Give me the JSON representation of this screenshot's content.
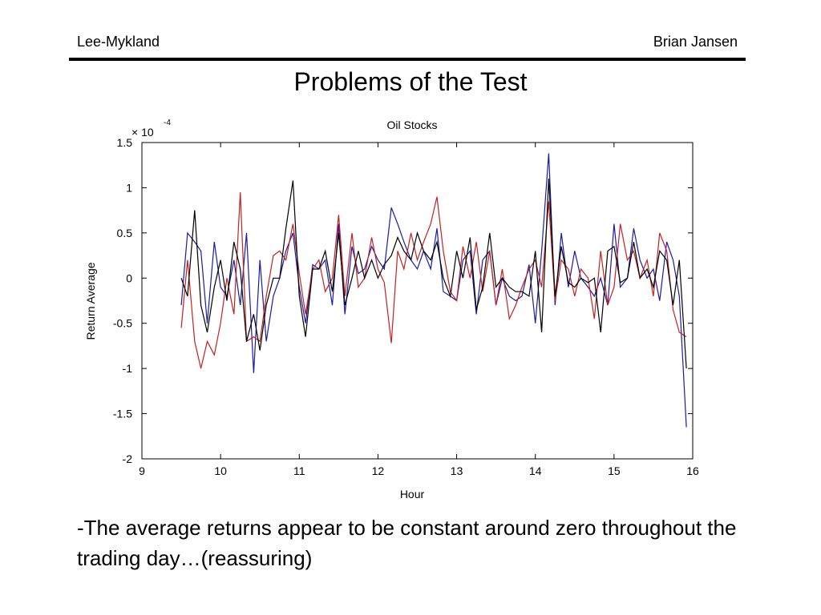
{
  "header": {
    "left": "Lee-Mykland",
    "right": "Brian Jansen"
  },
  "slide_title": "Problems of the Test",
  "bullet_text": "-The average returns appear to be constant around zero throughout the trading day…(reassuring)",
  "chart_data": {
    "type": "line",
    "title": "Oil Stocks",
    "xlabel": "Hour",
    "ylabel": "Return Average",
    "exponent_label": "× 10",
    "exponent_power": "-4",
    "xlim": [
      9,
      16
    ],
    "ylim": [
      -2,
      1.5
    ],
    "xticks": [
      9,
      10,
      11,
      12,
      13,
      14,
      15,
      16
    ],
    "yticks": [
      -2,
      -1.5,
      -1,
      -0.5,
      0,
      0.5,
      1,
      1.5
    ],
    "grid": false,
    "colors": {
      "blue": "#1a1aa8",
      "red": "#c42020",
      "black": "#000000"
    },
    "series": [
      {
        "color": "blue",
        "x": [
          9.5,
          9.58,
          9.67,
          9.75,
          9.83,
          9.92,
          10.0,
          10.08,
          10.17,
          10.25,
          10.33,
          10.42,
          10.5,
          10.58,
          10.67,
          10.75,
          10.83,
          10.92,
          11.0,
          11.08,
          11.17,
          11.25,
          11.33,
          11.42,
          11.5,
          11.58,
          11.67,
          11.75,
          11.83,
          11.92,
          12.0,
          12.08,
          12.17,
          12.25,
          12.33,
          12.42,
          12.5,
          12.58,
          12.67,
          12.75,
          12.83,
          12.92,
          13.0,
          13.08,
          13.17,
          13.25,
          13.33,
          13.42,
          13.5,
          13.58,
          13.67,
          13.75,
          13.83,
          13.92,
          14.0,
          14.08,
          14.17,
          14.25,
          14.33,
          14.42,
          14.5,
          14.58,
          14.67,
          14.75,
          14.83,
          14.92,
          15.0,
          15.08,
          15.17,
          15.25,
          15.33,
          15.42,
          15.5,
          15.58,
          15.67,
          15.75,
          15.83,
          15.92
        ],
        "y": [
          -0.3,
          0.5,
          0.4,
          0.3,
          -0.5,
          0.4,
          -0.1,
          -0.2,
          0.2,
          -0.3,
          0.5,
          -1.05,
          0.2,
          -0.7,
          -0.2,
          0.0,
          0.3,
          0.5,
          -0.1,
          -0.5,
          0.15,
          0.1,
          0.2,
          -0.3,
          0.6,
          -0.4,
          0.35,
          0.05,
          0.1,
          0.35,
          0.2,
          0.1,
          0.78,
          0.6,
          0.4,
          0.2,
          0.1,
          0.3,
          0.1,
          0.55,
          -0.15,
          -0.2,
          -0.25,
          0.2,
          0.3,
          -0.4,
          0.2,
          0.3,
          -0.3,
          0.0,
          -0.2,
          -0.25,
          -0.2,
          0.15,
          -0.5,
          0.3,
          1.38,
          -0.3,
          0.5,
          -0.1,
          0.3,
          0.0,
          -0.1,
          -0.2,
          0.0,
          -0.3,
          0.6,
          -0.1,
          0.0,
          0.55,
          0.2,
          0.0,
          0.1,
          -0.25,
          0.4,
          0.2,
          -0.2,
          -1.65
        ]
      },
      {
        "color": "red",
        "x": [
          9.5,
          9.58,
          9.67,
          9.75,
          9.83,
          9.92,
          10.0,
          10.08,
          10.17,
          10.25,
          10.33,
          10.42,
          10.5,
          10.58,
          10.67,
          10.75,
          10.83,
          10.92,
          11.0,
          11.08,
          11.17,
          11.25,
          11.33,
          11.42,
          11.5,
          11.58,
          11.67,
          11.75,
          11.83,
          11.92,
          12.0,
          12.08,
          12.17,
          12.25,
          12.33,
          12.42,
          12.5,
          12.58,
          12.67,
          12.75,
          12.83,
          12.92,
          13.0,
          13.08,
          13.17,
          13.25,
          13.33,
          13.42,
          13.5,
          13.58,
          13.67,
          13.75,
          13.83,
          13.92,
          14.0,
          14.08,
          14.17,
          14.25,
          14.33,
          14.42,
          14.5,
          14.58,
          14.67,
          14.75,
          14.83,
          14.92,
          15.0,
          15.08,
          15.17,
          15.25,
          15.33,
          15.42,
          15.5,
          15.58,
          15.67,
          15.75,
          15.83,
          15.92
        ],
        "y": [
          -0.55,
          0.2,
          -0.7,
          -1.0,
          -0.7,
          -0.85,
          -0.5,
          0.0,
          -0.4,
          0.95,
          -0.7,
          -0.65,
          -0.7,
          -0.2,
          0.25,
          0.3,
          0.2,
          0.6,
          0.05,
          -0.4,
          0.1,
          0.2,
          -0.15,
          0.0,
          0.7,
          -0.2,
          0.5,
          -0.1,
          0.0,
          0.45,
          0.1,
          -0.05,
          -0.72,
          0.3,
          0.1,
          0.5,
          0.2,
          0.4,
          0.6,
          0.9,
          0.3,
          -0.15,
          -0.25,
          0.35,
          0.0,
          0.4,
          -0.15,
          0.3,
          -0.3,
          0.1,
          -0.45,
          -0.3,
          -0.1,
          0.1,
          0.2,
          -0.1,
          0.85,
          -0.25,
          0.2,
          0.1,
          -0.2,
          0.1,
          0.0,
          -0.45,
          0.3,
          -0.3,
          -0.1,
          0.6,
          0.2,
          0.3,
          0.0,
          0.2,
          -0.2,
          0.5,
          0.3,
          -0.35,
          -0.6,
          -0.65
        ]
      },
      {
        "color": "black",
        "x": [
          9.5,
          9.58,
          9.67,
          9.75,
          9.83,
          9.92,
          10.0,
          10.08,
          10.17,
          10.25,
          10.33,
          10.42,
          10.5,
          10.58,
          10.67,
          10.75,
          10.83,
          10.92,
          11.0,
          11.08,
          11.17,
          11.25,
          11.33,
          11.42,
          11.5,
          11.58,
          11.67,
          11.75,
          11.83,
          11.92,
          12.0,
          12.08,
          12.17,
          12.25,
          12.33,
          12.42,
          12.5,
          12.58,
          12.67,
          12.75,
          12.83,
          12.92,
          13.0,
          13.08,
          13.17,
          13.25,
          13.33,
          13.42,
          13.5,
          13.58,
          13.67,
          13.75,
          13.83,
          13.92,
          14.0,
          14.08,
          14.17,
          14.25,
          14.33,
          14.42,
          14.5,
          14.58,
          14.67,
          14.75,
          14.83,
          14.92,
          15.0,
          15.08,
          15.17,
          15.25,
          15.33,
          15.42,
          15.5,
          15.58,
          15.67,
          15.75,
          15.83,
          15.92
        ],
        "y": [
          0.0,
          -0.2,
          0.75,
          -0.3,
          -0.6,
          -0.1,
          0.2,
          -0.25,
          0.4,
          0.1,
          -0.7,
          -0.4,
          -0.8,
          -0.3,
          0.0,
          0.0,
          0.55,
          1.08,
          -0.2,
          -0.65,
          0.1,
          0.1,
          0.3,
          -0.15,
          0.5,
          -0.3,
          0.0,
          0.3,
          0.0,
          0.2,
          0.0,
          0.15,
          0.25,
          0.45,
          0.3,
          0.2,
          0.5,
          0.3,
          0.2,
          0.4,
          0.0,
          -0.2,
          0.3,
          0.0,
          0.45,
          -0.35,
          -0.1,
          0.5,
          -0.1,
          0.0,
          -0.1,
          -0.15,
          -0.15,
          -0.2,
          0.3,
          -0.6,
          1.1,
          -0.2,
          0.35,
          -0.05,
          -0.1,
          0.0,
          -0.05,
          0.0,
          -0.6,
          0.3,
          0.35,
          -0.05,
          0.0,
          0.4,
          0.0,
          0.1,
          -0.1,
          0.3,
          0.2,
          -0.3,
          0.2,
          -1.0
        ]
      }
    ]
  }
}
